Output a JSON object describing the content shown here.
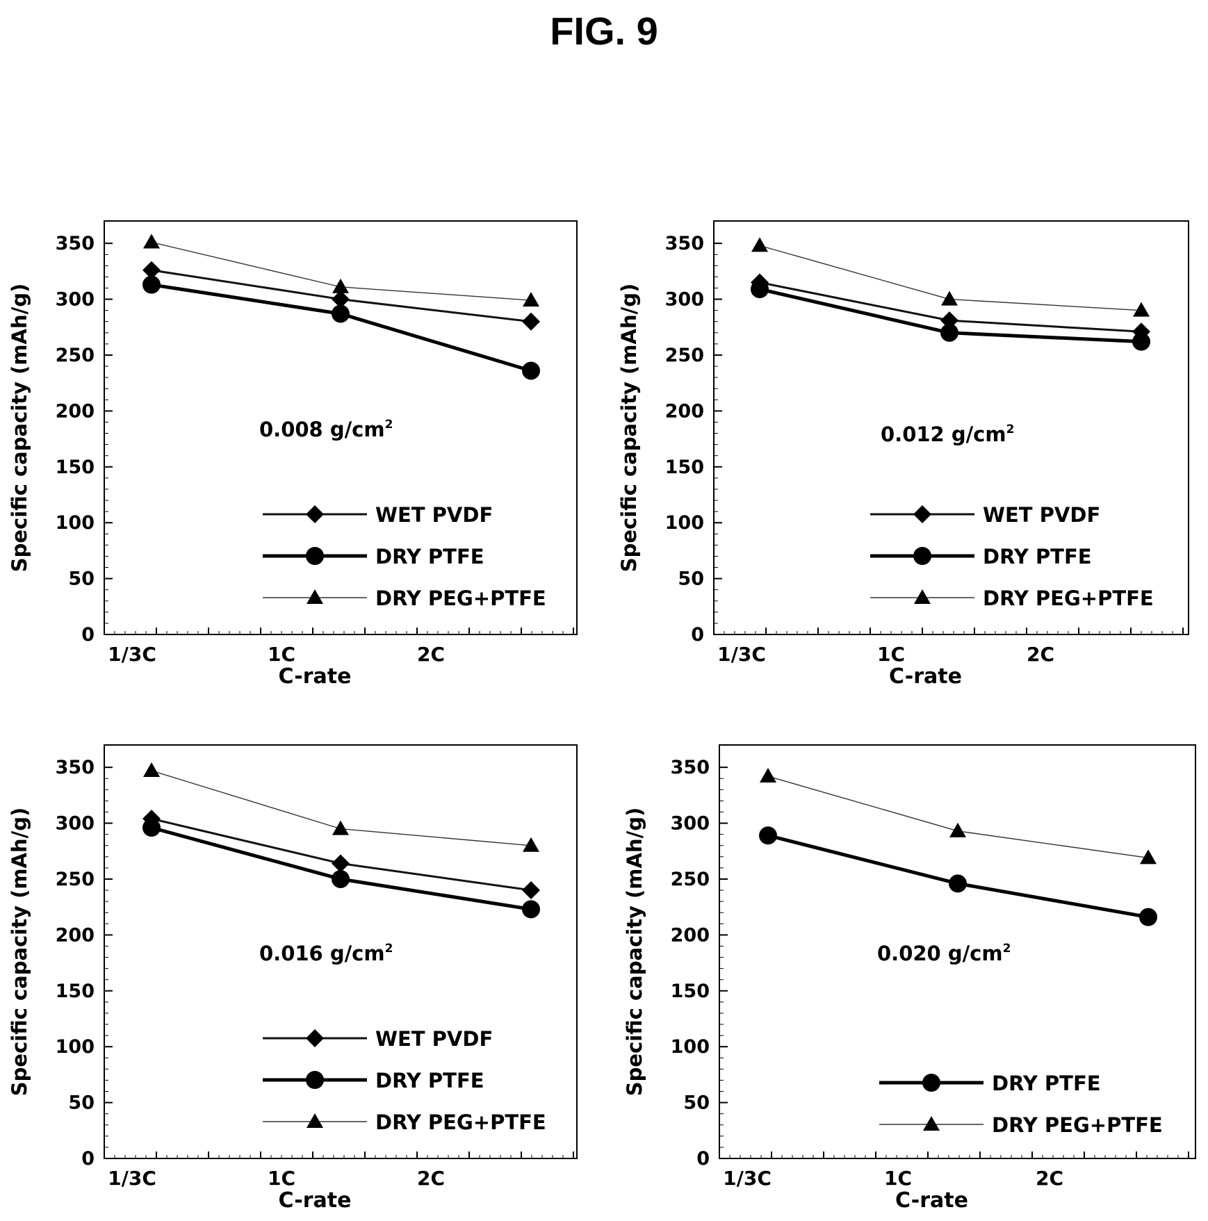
{
  "figure_title": "FIG. 9",
  "chart_data": [
    {
      "type": "line",
      "annotation": "0.008 g/cm",
      "annotation_sup": "2",
      "xlabel": "C-rate",
      "ylabel": "Specific capacity (mAh/g)",
      "x_tick_labels": [
        "1/3C",
        "1C",
        "2C"
      ],
      "y_ticks": [
        0,
        50,
        100,
        150,
        200,
        250,
        300,
        350
      ],
      "ylim": [
        0,
        370
      ],
      "grid": false,
      "legend_position": "bottom-right",
      "series": [
        {
          "name": "WET PVDF",
          "marker": "diamond",
          "line": "medium",
          "values": [
            326,
            300,
            280
          ]
        },
        {
          "name": "DRY PTFE",
          "marker": "circle",
          "line": "thick",
          "values": [
            313,
            287,
            236
          ]
        },
        {
          "name": "DRY PEG+PTFE",
          "marker": "triangle",
          "line": "thin",
          "values": [
            351,
            311,
            299
          ]
        }
      ]
    },
    {
      "type": "line",
      "annotation": "0.012 g/cm",
      "annotation_sup": "2",
      "xlabel": "C-rate",
      "ylabel": "Specific capacity (mAh/g)",
      "x_tick_labels": [
        "1/3C",
        "1C",
        "2C"
      ],
      "y_ticks": [
        0,
        50,
        100,
        150,
        200,
        250,
        300,
        350
      ],
      "ylim": [
        0,
        370
      ],
      "grid": false,
      "legend_position": "bottom-right",
      "series": [
        {
          "name": "WET PVDF",
          "marker": "diamond",
          "line": "medium",
          "values": [
            315,
            281,
            271
          ]
        },
        {
          "name": "DRY PTFE",
          "marker": "circle",
          "line": "thick",
          "values": [
            309,
            270,
            262
          ]
        },
        {
          "name": "DRY PEG+PTFE",
          "marker": "triangle",
          "line": "thin",
          "values": [
            348,
            300,
            290
          ]
        }
      ]
    },
    {
      "type": "line",
      "annotation": "0.016 g/cm",
      "annotation_sup": "2",
      "xlabel": "C-rate",
      "ylabel": "Specific capacity (mAh/g)",
      "x_tick_labels": [
        "1/3C",
        "1C",
        "2C"
      ],
      "y_ticks": [
        0,
        50,
        100,
        150,
        200,
        250,
        300,
        350
      ],
      "ylim": [
        0,
        370
      ],
      "grid": false,
      "legend_position": "bottom-right",
      "series": [
        {
          "name": "WET PVDF",
          "marker": "diamond",
          "line": "medium",
          "values": [
            304,
            264,
            240
          ]
        },
        {
          "name": "DRY PTFE",
          "marker": "circle",
          "line": "thick",
          "values": [
            296,
            250,
            223
          ]
        },
        {
          "name": "DRY PEG+PTFE",
          "marker": "triangle",
          "line": "thin",
          "values": [
            347,
            295,
            280
          ]
        }
      ]
    },
    {
      "type": "line",
      "annotation": "0.020 g/cm",
      "annotation_sup": "2",
      "xlabel": "C-rate",
      "ylabel": "Specific capacity (mAh/g)",
      "x_tick_labels": [
        "1/3C",
        "1C",
        "2C"
      ],
      "y_ticks": [
        0,
        50,
        100,
        150,
        200,
        250,
        300,
        350
      ],
      "ylim": [
        0,
        370
      ],
      "grid": false,
      "legend_position": "bottom-right",
      "series": [
        {
          "name": "DRY PTFE",
          "marker": "circle",
          "line": "thick",
          "values": [
            289,
            246,
            216
          ]
        },
        {
          "name": "DRY PEG+PTFE",
          "marker": "triangle",
          "line": "thin",
          "values": [
            342,
            293,
            269
          ]
        }
      ]
    }
  ]
}
